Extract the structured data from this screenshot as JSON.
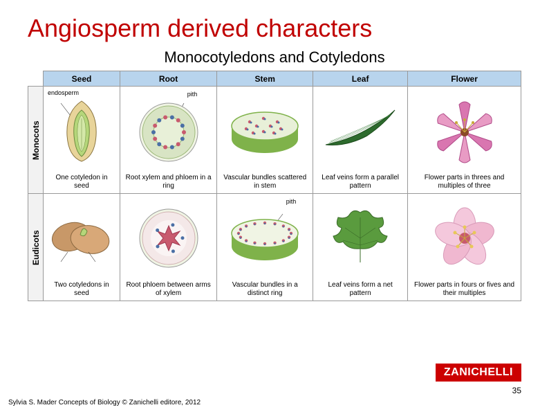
{
  "title": "Angiosperm derived characters",
  "subtitle": "Monocotyledons and Cotyledons",
  "title_color": "#c00000",
  "columns": [
    "Seed",
    "Root",
    "Stem",
    "Leaf",
    "Flower"
  ],
  "rows": {
    "monocots": {
      "label": "Monocots",
      "seed": {
        "caption": "One cotyledon in seed",
        "ann": "endosperm"
      },
      "root": {
        "caption": "Root xylem and phloem in a ring",
        "ann": "pith"
      },
      "stem": {
        "caption": "Vascular bundles scattered in stem"
      },
      "leaf": {
        "caption": "Leaf veins form a parallel pattern"
      },
      "flower": {
        "caption": "Flower parts in threes and multiples of three"
      }
    },
    "eudicots": {
      "label": "Eudicots",
      "seed": {
        "caption": "Two cotyledons in seed"
      },
      "root": {
        "caption": "Root phloem between arms of xylem"
      },
      "stem": {
        "caption": "Vascular bundles in a distinct ring",
        "ann": "pith"
      },
      "leaf": {
        "caption": "Leaf veins form a net pattern"
      },
      "flower": {
        "caption": "Flower parts in fours or fives and their multiples"
      }
    }
  },
  "logo": "ZANICHELLI",
  "page": "35",
  "footer": "Sylvia S. Mader Concepts of Biology © Zanichelli editore, 2012",
  "colors": {
    "header_bg": "#b8d4ed",
    "border": "#999",
    "seed_m": "#e8d49a",
    "seed_inner": "#b5d67a",
    "root_outer": "#d8e4c4",
    "root_ring": "#9bb876",
    "xylem": "#4a6fa5",
    "phloem": "#c85a6e",
    "stem_side": "#7fb24a",
    "stem_top": "#e8f0d8",
    "leaf_m": "#2d6b2d",
    "leaf_e": "#5a9b3e",
    "flower_m": "#d976b0",
    "flower_e": "#e89bc4",
    "flower_center": "#c8a838"
  }
}
